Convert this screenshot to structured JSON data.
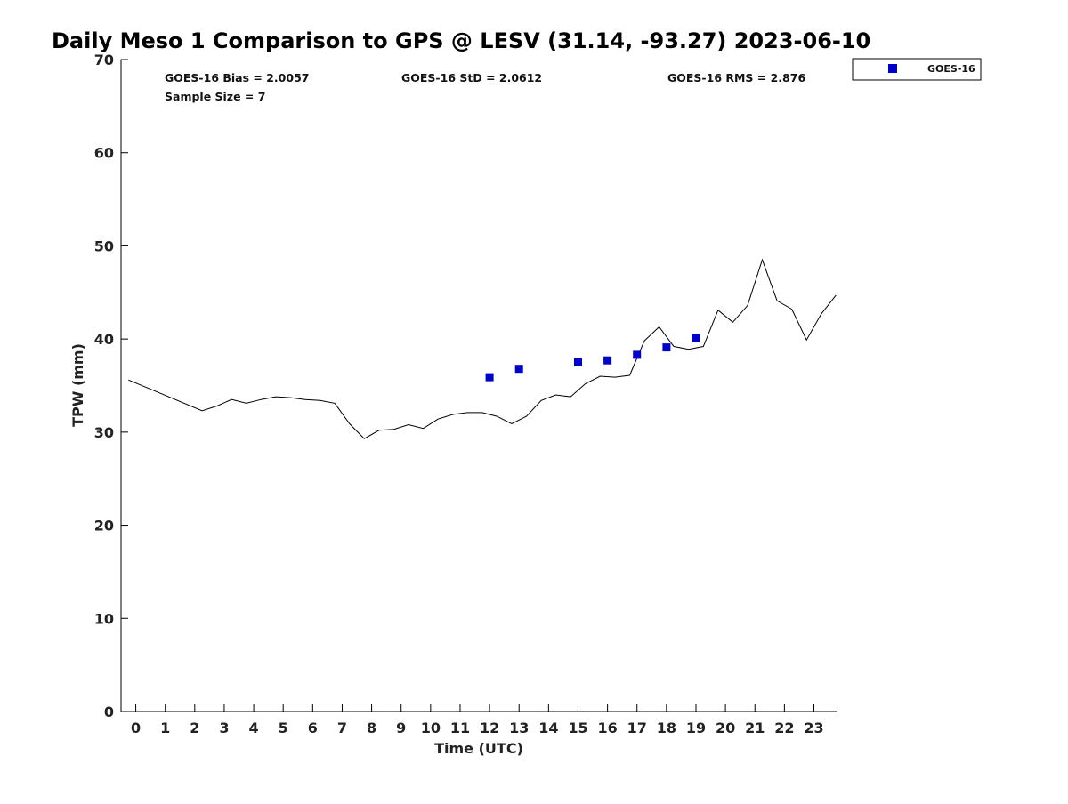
{
  "chart_data": {
    "type": "line",
    "title": "Daily Meso 1 Comparison to GPS @ LESV (31.14, -93.27) 2023-06-10",
    "xlabel": "Time (UTC)",
    "ylabel": "TPW (mm)",
    "xlim": [
      -0.5,
      23.8
    ],
    "ylim": [
      0,
      70
    ],
    "x_ticks": [
      "0",
      "1",
      "2",
      "3",
      "4",
      "5",
      "6",
      "7",
      "8",
      "9",
      "10",
      "11",
      "12",
      "13",
      "14",
      "15",
      "16",
      "17",
      "18",
      "19",
      "20",
      "21",
      "22",
      "23"
    ],
    "y_ticks": [
      "0",
      "10",
      "20",
      "30",
      "40",
      "50",
      "60",
      "70"
    ],
    "grid": false,
    "legend": {
      "position": "top-right",
      "entries": [
        "GOES-16"
      ]
    },
    "stats": [
      "GOES-16 Bias = 2.0057",
      "GOES-16 StD = 2.0612",
      "GOES-16 RMS = 2.876",
      "Sample Size = 7"
    ],
    "series": [
      {
        "style": "line",
        "color": "#000000",
        "x": [
          -0.25,
          2.25,
          2.75,
          3.25,
          3.75,
          4.25,
          4.75,
          5.25,
          5.75,
          6.25,
          6.75,
          7.25,
          7.75,
          8.25,
          8.75,
          9.25,
          9.75,
          10.25,
          10.75,
          11.25,
          11.75,
          12.25,
          12.75,
          13.25,
          13.75,
          14.25,
          14.75,
          15.25,
          15.75,
          16.25,
          16.75,
          17.25,
          17.75,
          18.25,
          18.75,
          19.25,
          19.75,
          20.25,
          20.75,
          21.25,
          21.75,
          22.25,
          22.75,
          23.25,
          23.75
        ],
        "y": [
          35.6,
          32.3,
          32.8,
          33.5,
          33.1,
          33.5,
          33.8,
          33.7,
          33.5,
          33.4,
          33.1,
          30.9,
          29.3,
          30.2,
          30.3,
          30.8,
          30.4,
          31.4,
          31.9,
          32.1,
          32.1,
          31.7,
          30.9,
          31.7,
          33.4,
          34.0,
          33.8,
          35.2,
          36.0,
          35.9,
          36.1,
          39.8,
          41.3,
          39.2,
          38.9,
          39.2,
          43.1,
          41.8,
          43.6,
          48.5,
          44.1,
          43.2,
          39.9,
          42.7,
          44.7
        ]
      },
      {
        "name": "GOES-16",
        "style": "marker",
        "color": "#0000cc",
        "x": [
          12,
          13,
          15,
          16,
          17,
          18,
          19
        ],
        "y": [
          35.9,
          36.8,
          37.5,
          37.7,
          38.3,
          39.1,
          40.1
        ]
      }
    ]
  }
}
